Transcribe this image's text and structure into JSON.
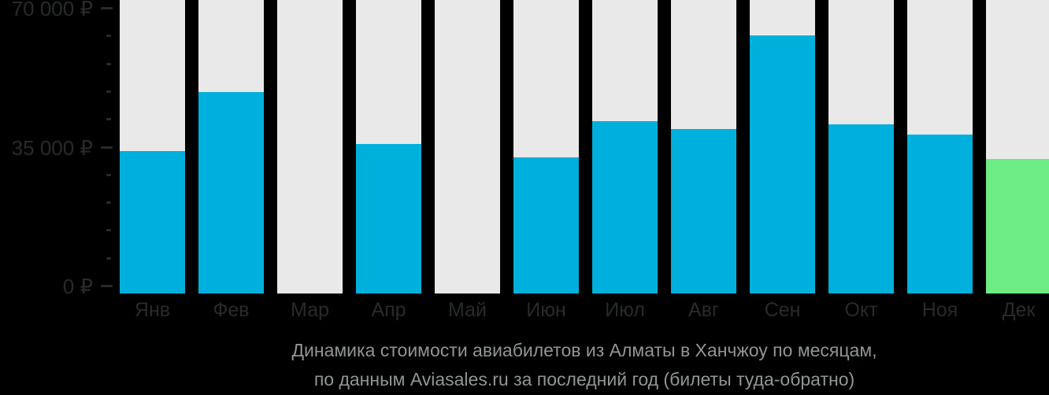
{
  "colors": {
    "background": "#000000",
    "bar_background": "#e9e9e9",
    "bar_value": "#00b0dc",
    "bar_highlight": "#6dec86",
    "axis_text": "#282b2a",
    "caption_text": "#909695"
  },
  "y_axis": {
    "ticks": [
      {
        "label": "70 000 ₽",
        "value": 70000
      },
      {
        "label": "35 000 ₽",
        "value": 35000
      },
      {
        "label": "0 ₽",
        "value": 0
      }
    ],
    "minor_step": 7000
  },
  "chart_data": {
    "type": "bar",
    "title": "Динамика стоимости авиабилетов из Алматы в Ханчжоу по месяцам,",
    "subtitle": "по данным Aviasales.ru за последний год (билеты туда-обратно)",
    "categories": [
      "Янв",
      "Фев",
      "Мар",
      "Апр",
      "Май",
      "Июн",
      "Июл",
      "Авг",
      "Сен",
      "Окт",
      "Ноя",
      "Дек"
    ],
    "values": [
      34000,
      48800,
      null,
      35700,
      null,
      32300,
      41400,
      39500,
      63100,
      40700,
      38100,
      31900
    ],
    "highlight_index": 11,
    "currency": "₽",
    "xlabel": "",
    "ylabel": "",
    "ylim": [
      0,
      70000
    ],
    "grid": false,
    "legend": "none"
  }
}
